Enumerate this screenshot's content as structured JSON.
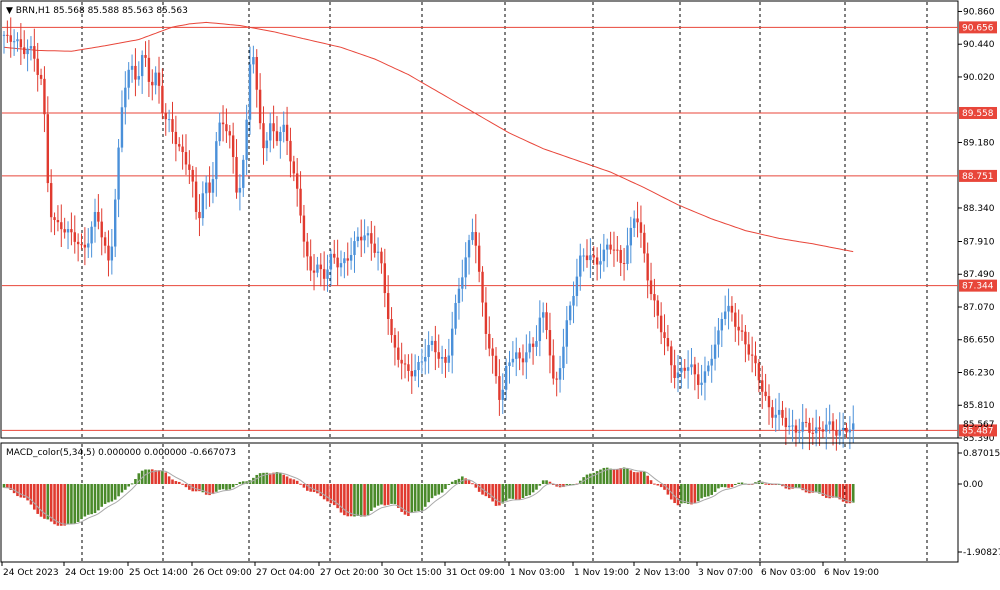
{
  "chart_data": [
    {
      "type": "candlestick",
      "symbol_header": "BRN,H1",
      "ohlc_readout": [
        "85.568",
        "85.588",
        "85.563",
        "85.563"
      ],
      "header_marker": "▼",
      "ylim": [
        85.39,
        90.93
      ],
      "y_ticks": [
        "90.860",
        "90.440",
        "90.020",
        "89.180",
        "88.340",
        "87.910",
        "87.490",
        "87.070",
        "86.650",
        "86.230",
        "85.810",
        "85.390"
      ],
      "horizontal_levels": [
        "90.656",
        "89.558",
        "88.751",
        "87.344",
        "85.487"
      ],
      "overlapped_price_label": "85.567",
      "moving_average": {
        "x": [
          0,
          10,
          20,
          30,
          40,
          45,
          50,
          55,
          60,
          70,
          80,
          90,
          100,
          110,
          120,
          130,
          140,
          150,
          160,
          170,
          180,
          190,
          200,
          210,
          220,
          230,
          240,
          252
        ],
        "values": [
          90.4,
          90.36,
          90.35,
          90.42,
          90.5,
          90.58,
          90.66,
          90.7,
          90.72,
          90.68,
          90.6,
          90.5,
          90.4,
          90.25,
          90.05,
          89.8,
          89.55,
          89.3,
          89.1,
          88.95,
          88.8,
          88.6,
          88.38,
          88.2,
          88.05,
          87.95,
          87.88,
          87.78
        ]
      },
      "price_anchors": {
        "x": [
          0,
          2,
          4,
          6,
          8,
          10,
          12,
          14,
          16,
          18,
          20,
          24,
          28,
          32,
          36,
          38,
          40,
          42,
          44,
          46,
          48,
          52,
          56,
          58,
          60,
          62,
          64,
          66,
          68,
          70,
          72,
          74,
          76,
          78,
          80,
          82,
          84,
          86,
          88,
          90,
          92,
          94,
          96,
          98,
          100,
          104,
          108,
          112,
          116,
          120,
          124,
          128,
          132,
          136,
          140,
          142,
          144,
          146,
          148,
          150,
          152,
          154,
          156,
          158,
          160,
          162,
          164,
          168,
          172,
          176,
          180,
          184,
          188,
          192,
          196,
          200,
          204,
          208,
          212,
          214,
          216,
          218,
          220,
          222,
          224,
          228,
          232,
          236,
          238,
          240,
          242,
          244,
          248,
          252
        ],
        "values": [
          90.55,
          90.45,
          90.6,
          90.3,
          90.4,
          90.2,
          90.0,
          88.3,
          88.1,
          88.15,
          88.0,
          87.8,
          88.25,
          87.6,
          89.8,
          90.2,
          90.0,
          90.3,
          89.9,
          90.1,
          89.5,
          89.2,
          88.8,
          88.1,
          88.7,
          88.5,
          89.3,
          89.5,
          89.2,
          88.4,
          89.0,
          90.6,
          89.6,
          89.0,
          89.5,
          89.2,
          89.4,
          88.8,
          88.6,
          87.7,
          87.5,
          87.6,
          87.5,
          87.7,
          87.6,
          87.8,
          88.05,
          87.7,
          86.6,
          86.2,
          86.35,
          86.6,
          86.3,
          87.45,
          88.1,
          87.3,
          86.7,
          86.3,
          85.8,
          86.4,
          86.5,
          86.3,
          86.55,
          86.6,
          87.0,
          86.7,
          86.0,
          86.9,
          87.8,
          87.6,
          87.9,
          87.6,
          88.3,
          87.4,
          86.7,
          86.2,
          86.3,
          86.1,
          86.6,
          87.1,
          87.0,
          86.8,
          86.7,
          86.5,
          86.2,
          85.75,
          85.6,
          85.5,
          85.52,
          85.5,
          85.51,
          85.52,
          85.5,
          85.49
        ]
      },
      "x_tick_labels": [
        "24 Oct 2023",
        "24 Oct 19:00",
        "25 Oct 14:00",
        "26 Oct 09:00",
        "27 Oct 04:00",
        "27 Oct 20:00",
        "30 Oct 15:00",
        "31 Oct 09:00",
        "1 Nov 03:00",
        "1 Nov 19:00",
        "2 Nov 13:00",
        "3 Nov 07:00",
        "6 Nov 03:00",
        "6 Nov 19:00"
      ],
      "colors": {
        "bull": "#4a90d9",
        "bear": "#e03a2f",
        "level_line": "#e8463a",
        "ma": "#e8463a",
        "grid": "#000000",
        "axis_text": "#000000"
      }
    },
    {
      "type": "histogram",
      "indicator_label": "MACD_color(5,34,5) 0.000000 0.000000 -0.667073",
      "ylim": [
        -1.908274,
        0.870152
      ],
      "y_ticks": [
        "0.870152",
        "0.00",
        "-1.908274"
      ],
      "macd_anchors": {
        "x": [
          0,
          6,
          12,
          18,
          24,
          30,
          36,
          40,
          44,
          48,
          54,
          60,
          66,
          72,
          78,
          84,
          90,
          96,
          100,
          104,
          108,
          112,
          116,
          120,
          124,
          128,
          132,
          136,
          140,
          146,
          150,
          156,
          160,
          166,
          170,
          176,
          182,
          186,
          190,
          196,
          200,
          206,
          212,
          218,
          224,
          228,
          232,
          236,
          240,
          244,
          248,
          252
        ],
        "values": [
          -0.1,
          -0.4,
          -1.0,
          -1.2,
          -0.95,
          -0.6,
          -0.2,
          0.3,
          0.45,
          0.3,
          -0.1,
          -0.3,
          -0.15,
          0.1,
          0.35,
          0.25,
          -0.15,
          -0.45,
          -0.8,
          -0.95,
          -0.85,
          -0.55,
          -0.6,
          -0.9,
          -0.7,
          -0.35,
          -0.05,
          0.25,
          -0.1,
          -0.6,
          -0.45,
          -0.35,
          0.1,
          -0.1,
          0.05,
          0.4,
          0.45,
          0.4,
          0.3,
          -0.2,
          -0.6,
          -0.5,
          -0.15,
          0.0,
          0.05,
          0.0,
          -0.1,
          -0.15,
          -0.25,
          -0.35,
          -0.45,
          -0.55
        ]
      },
      "colors": {
        "positive": "#4a8a2a",
        "negative": "#e03a2f",
        "signal": "#aaaaaa"
      }
    }
  ]
}
